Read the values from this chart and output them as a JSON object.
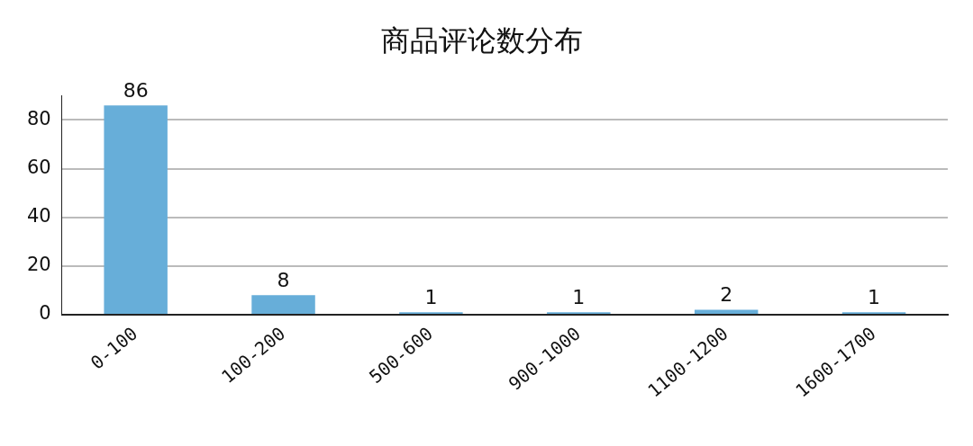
{
  "chart_data": {
    "type": "bar",
    "title": "商品评论数分布",
    "categories": [
      "0-100",
      "100-200",
      "500-600",
      "900-1000",
      "1100-1200",
      "1600-1700"
    ],
    "values": [
      86,
      8,
      1,
      1,
      2,
      1
    ],
    "color": "#67aed9",
    "ylim": [
      0,
      90
    ],
    "yticks": [
      0,
      20,
      40,
      60,
      80
    ],
    "grid": "y",
    "data_labels": true
  }
}
